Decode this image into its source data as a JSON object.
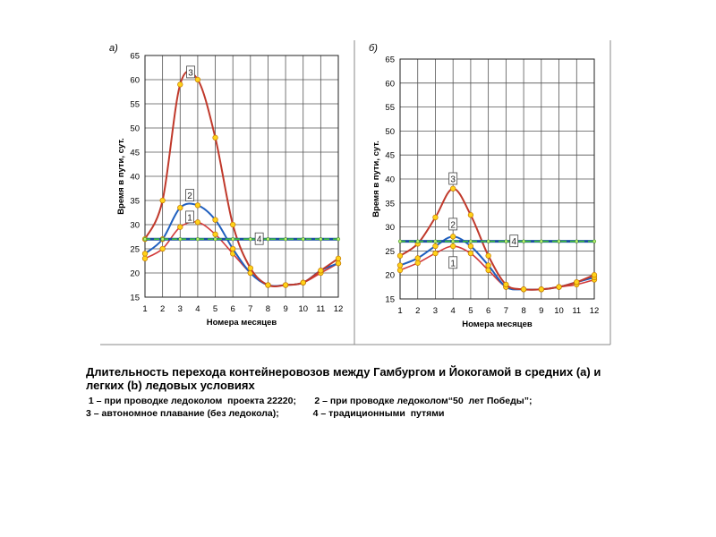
{
  "colors": {
    "line_thin": "#d23a3a",
    "line_thick": "#c0392b",
    "line_blue": "#1f5fbf",
    "dot": "#ffd21a",
    "dot_edge": "#c47a00",
    "green_dash": "#40c040",
    "grid": "#555555"
  },
  "chart_data": [
    {
      "type": "line",
      "panel_label": "а)",
      "xlabel": "Номера месяцев",
      "ylabel": "Время в пути, сут.",
      "x": [
        1,
        2,
        3,
        4,
        5,
        6,
        7,
        8,
        9,
        10,
        11,
        12
      ],
      "xlim": [
        1,
        12
      ],
      "ylim": [
        15,
        65
      ],
      "yticks": [
        15,
        20,
        25,
        30,
        35,
        40,
        45,
        50,
        55,
        60,
        65
      ],
      "grid": true,
      "series": [
        {
          "name": "1",
          "values": [
            23,
            25,
            29.5,
            30.5,
            28,
            24,
            20,
            17.5,
            17.5,
            18,
            20,
            22
          ]
        },
        {
          "name": "2",
          "values": [
            24,
            27,
            33.5,
            34,
            31,
            25,
            20,
            17.5,
            17.5,
            18,
            20.5,
            22
          ]
        },
        {
          "name": "3",
          "values": [
            27,
            35,
            59,
            60,
            48,
            30,
            21,
            17.5,
            17.5,
            18,
            20.5,
            23
          ]
        },
        {
          "name": "4",
          "values": [
            27,
            27,
            27,
            27,
            27,
            27,
            27,
            27,
            27,
            27,
            27,
            27
          ]
        }
      ],
      "annotations": [
        {
          "text": "3",
          "x": 3.6,
          "y": 61.5
        },
        {
          "text": "2",
          "x": 3.55,
          "y": 36
        },
        {
          "text": "1",
          "x": 3.55,
          "y": 31.5
        },
        {
          "text": "4",
          "x": 7.5,
          "y": 27
        }
      ]
    },
    {
      "type": "line",
      "panel_label": "б)",
      "xlabel": "Номера месяцев",
      "ylabel": "Время в пути, сут.",
      "x": [
        1,
        2,
        3,
        4,
        5,
        6,
        7,
        8,
        9,
        10,
        11,
        12
      ],
      "xlim": [
        1,
        12
      ],
      "ylim": [
        15,
        65
      ],
      "yticks": [
        15,
        20,
        25,
        30,
        35,
        40,
        45,
        50,
        55,
        60,
        65
      ],
      "grid": true,
      "series": [
        {
          "name": "1",
          "values": [
            21,
            22.5,
            24.5,
            26,
            24.5,
            21,
            17.5,
            17,
            17,
            17.5,
            18,
            19
          ]
        },
        {
          "name": "2",
          "values": [
            22,
            23.5,
            26,
            28,
            26,
            22,
            17.5,
            17,
            17,
            17.5,
            18.5,
            19.5
          ]
        },
        {
          "name": "3",
          "values": [
            24,
            26.5,
            32,
            38,
            32.5,
            24,
            18,
            17,
            17,
            17.5,
            18.5,
            20
          ]
        },
        {
          "name": "4",
          "values": [
            27,
            27,
            27,
            27,
            27,
            27,
            27,
            27,
            27,
            27,
            27,
            27
          ]
        }
      ],
      "annotations": [
        {
          "text": "3",
          "x": 4.0,
          "y": 40
        },
        {
          "text": "2",
          "x": 4.0,
          "y": 30.5
        },
        {
          "text": "1",
          "x": 4.0,
          "y": 22.5
        },
        {
          "text": "4",
          "x": 7.45,
          "y": 27
        }
      ]
    }
  ],
  "caption": {
    "title": "Длительность перехода контейнеровозов между Гамбургом и Йокогамой в средних (a) и легких (b) ледовых условиях",
    "legend_line1": " 1 – при проводке ледоколом  проекта 22220;       2 – при проводке ледоколом“50  лет Победы”;",
    "legend_line2": "3 – автономное плавание (без ледокола);             4 – традиционными  путями"
  }
}
